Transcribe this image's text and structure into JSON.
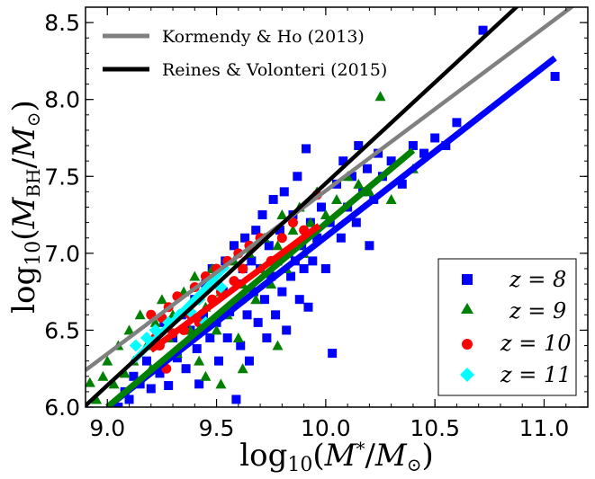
{
  "chart_data": {
    "type": "scatter",
    "xlabel": "log₁₀(M*/M⊙)",
    "ylabel": "log₁₀(M_BH/M⊙)",
    "xlim": [
      8.9,
      11.2
    ],
    "ylim": [
      6.0,
      8.6
    ],
    "xticks": [
      "9.0",
      "9.5",
      "10.0",
      "10.5",
      "11.0"
    ],
    "yticks": [
      "6.0",
      "6.5",
      "7.0",
      "7.5",
      "8.0",
      "8.5"
    ],
    "grid": false,
    "relations": [
      {
        "name": "Kormendy & Ho (2013)",
        "color": "#808080",
        "x": [
          8.9,
          11.2
        ],
        "y": [
          6.24,
          8.68
        ]
      },
      {
        "name": "Reines & Volonteri (2015)",
        "color": "#000000",
        "x": [
          8.9,
          11.2
        ],
        "y": [
          6.01,
          9.03
        ]
      }
    ],
    "series": [
      {
        "name": "z = 8",
        "marker": "square",
        "color": "#0000ff",
        "fit": {
          "x": [
            9.0,
            11.05
          ],
          "y": [
            6.0,
            8.27
          ]
        },
        "points": [
          [
            9.05,
            6.0
          ],
          [
            9.08,
            6.1
          ],
          [
            9.1,
            6.05
          ],
          [
            9.12,
            6.2
          ],
          [
            9.15,
            6.15
          ],
          [
            9.18,
            6.3
          ],
          [
            9.2,
            6.12
          ],
          [
            9.22,
            6.4
          ],
          [
            9.24,
            6.22
          ],
          [
            9.26,
            6.55
          ],
          [
            9.28,
            6.14
          ],
          [
            9.3,
            6.45
          ],
          [
            9.32,
            6.32
          ],
          [
            9.34,
            6.6
          ],
          [
            9.36,
            6.25
          ],
          [
            9.38,
            6.5
          ],
          [
            9.4,
            6.7
          ],
          [
            9.41,
            6.38
          ],
          [
            9.42,
            6.15
          ],
          [
            9.44,
            6.6
          ],
          [
            9.45,
            6.8
          ],
          [
            9.47,
            6.45
          ],
          [
            9.48,
            6.9
          ],
          [
            9.5,
            6.55
          ],
          [
            9.51,
            6.3
          ],
          [
            9.53,
            6.75
          ],
          [
            9.54,
            6.95
          ],
          [
            9.55,
            6.45
          ],
          [
            9.56,
            6.62
          ],
          [
            9.58,
            7.05
          ],
          [
            9.59,
            6.05
          ],
          [
            9.6,
            6.8
          ],
          [
            9.61,
            6.4
          ],
          [
            9.62,
            6.9
          ],
          [
            9.63,
            7.1
          ],
          [
            9.64,
            6.6
          ],
          [
            9.65,
            6.3
          ],
          [
            9.66,
            6.95
          ],
          [
            9.67,
            6.75
          ],
          [
            9.68,
            7.15
          ],
          [
            9.69,
            6.55
          ],
          [
            9.7,
            6.9
          ],
          [
            9.71,
            7.25
          ],
          [
            9.72,
            6.7
          ],
          [
            9.73,
            6.45
          ],
          [
            9.74,
            7.05
          ],
          [
            9.75,
            6.85
          ],
          [
            9.76,
            7.35
          ],
          [
            9.77,
            6.6
          ],
          [
            9.78,
            6.95
          ],
          [
            9.79,
            7.15
          ],
          [
            9.8,
            6.75
          ],
          [
            9.81,
            7.4
          ],
          [
            9.82,
            6.5
          ],
          [
            9.83,
            7.0
          ],
          [
            9.84,
            6.85
          ],
          [
            9.85,
            7.25
          ],
          [
            9.86,
            6.95
          ],
          [
            9.87,
            7.5
          ],
          [
            9.88,
            6.7
          ],
          [
            9.89,
            7.05
          ],
          [
            9.9,
            6.9
          ],
          [
            9.91,
            7.68
          ],
          [
            9.92,
            6.65
          ],
          [
            9.93,
            7.2
          ],
          [
            9.94,
            6.95
          ],
          [
            9.96,
            7.1
          ],
          [
            9.98,
            7.3
          ],
          [
            10.0,
            6.9
          ],
          [
            10.02,
            7.2
          ],
          [
            10.03,
            6.35
          ],
          [
            10.05,
            7.45
          ],
          [
            10.07,
            7.1
          ],
          [
            10.08,
            7.6
          ],
          [
            10.1,
            7.3
          ],
          [
            10.12,
            7.5
          ],
          [
            10.14,
            7.2
          ],
          [
            10.15,
            7.7
          ],
          [
            10.17,
            7.4
          ],
          [
            10.19,
            7.55
          ],
          [
            10.2,
            7.05
          ],
          [
            10.22,
            7.35
          ],
          [
            10.24,
            7.65
          ],
          [
            10.26,
            7.5
          ],
          [
            10.3,
            7.6
          ],
          [
            10.35,
            7.45
          ],
          [
            10.4,
            7.7
          ],
          [
            10.45,
            7.65
          ],
          [
            10.5,
            7.75
          ],
          [
            10.55,
            7.7
          ],
          [
            10.6,
            7.85
          ],
          [
            10.72,
            8.45
          ],
          [
            11.05,
            8.15
          ]
        ]
      },
      {
        "name": "z = 9",
        "marker": "triangle",
        "color": "#008000",
        "fit": {
          "x": [
            9.0,
            10.4
          ],
          "y": [
            6.0,
            7.67
          ]
        },
        "points": [
          [
            8.92,
            6.16
          ],
          [
            8.95,
            6.05
          ],
          [
            8.98,
            6.2
          ],
          [
            9.0,
            6.3
          ],
          [
            9.03,
            6.15
          ],
          [
            9.05,
            6.4
          ],
          [
            9.08,
            6.22
          ],
          [
            9.1,
            6.5
          ],
          [
            9.12,
            6.3
          ],
          [
            9.15,
            6.6
          ],
          [
            9.18,
            6.4
          ],
          [
            9.2,
            6.25
          ],
          [
            9.22,
            6.55
          ],
          [
            9.25,
            6.7
          ],
          [
            9.28,
            6.45
          ],
          [
            9.3,
            6.6
          ],
          [
            9.32,
            6.35
          ],
          [
            9.35,
            6.75
          ],
          [
            9.38,
            6.5
          ],
          [
            9.4,
            6.85
          ],
          [
            9.42,
            6.3
          ],
          [
            9.45,
            6.65
          ],
          [
            9.48,
            6.9
          ],
          [
            9.5,
            6.5
          ],
          [
            9.52,
            6.75
          ],
          [
            9.55,
            6.6
          ],
          [
            9.58,
            6.95
          ],
          [
            9.6,
            6.45
          ],
          [
            9.62,
            6.8
          ],
          [
            9.65,
            7.0
          ],
          [
            9.68,
            6.7
          ],
          [
            9.7,
            6.9
          ],
          [
            9.72,
            7.1
          ],
          [
            9.75,
            6.8
          ],
          [
            9.78,
            7.05
          ],
          [
            9.8,
            7.25
          ],
          [
            9.82,
            6.9
          ],
          [
            9.85,
            7.15
          ],
          [
            9.88,
            7.3
          ],
          [
            9.9,
            7.0
          ],
          [
            9.93,
            7.2
          ],
          [
            9.96,
            7.4
          ],
          [
            10.0,
            7.25
          ],
          [
            10.05,
            7.35
          ],
          [
            10.1,
            7.5
          ],
          [
            10.15,
            7.45
          ],
          [
            10.2,
            7.4
          ],
          [
            10.25,
            8.02
          ],
          [
            10.3,
            7.35
          ],
          [
            10.4,
            7.55
          ],
          [
            9.78,
            6.4
          ],
          [
            9.52,
            6.15
          ],
          [
            9.45,
            6.2
          ],
          [
            9.62,
            6.25
          ]
        ]
      },
      {
        "name": "z = 10",
        "marker": "circle",
        "color": "#ff0000",
        "fit": {
          "x": [
            9.2,
            9.97
          ],
          "y": [
            6.37,
            7.18
          ]
        },
        "points": [
          [
            9.2,
            6.6
          ],
          [
            9.22,
            6.45
          ],
          [
            9.24,
            6.4
          ],
          [
            9.25,
            6.58
          ],
          [
            9.27,
            6.25
          ],
          [
            9.28,
            6.65
          ],
          [
            9.3,
            6.48
          ],
          [
            9.32,
            6.72
          ],
          [
            9.35,
            6.5
          ],
          [
            9.38,
            6.6
          ],
          [
            9.4,
            6.78
          ],
          [
            9.42,
            6.55
          ],
          [
            9.45,
            6.85
          ],
          [
            9.48,
            6.7
          ],
          [
            9.5,
            6.9
          ],
          [
            9.52,
            6.75
          ],
          [
            9.55,
            6.95
          ],
          [
            9.58,
            6.82
          ],
          [
            9.6,
            7.0
          ],
          [
            9.62,
            6.9
          ],
          [
            9.65,
            7.05
          ],
          [
            9.7,
            7.1
          ],
          [
            9.75,
            6.95
          ],
          [
            9.8,
            7.1
          ],
          [
            9.85,
            7.2
          ],
          [
            9.9,
            7.15
          ],
          [
            9.96,
            7.38
          ]
        ]
      },
      {
        "name": "z = 11",
        "marker": "diamond",
        "color": "#00ffff",
        "fit": {
          "x": [
            9.12,
            9.55
          ],
          "y": [
            6.3,
            6.92
          ]
        },
        "points": [
          [
            9.13,
            6.4
          ],
          [
            9.18,
            6.45
          ],
          [
            9.22,
            6.5
          ],
          [
            9.28,
            6.55
          ],
          [
            9.33,
            6.6
          ],
          [
            9.38,
            6.62
          ],
          [
            9.42,
            6.7
          ],
          [
            9.45,
            6.55
          ],
          [
            9.5,
            6.8
          ],
          [
            9.52,
            6.78
          ]
        ]
      }
    ],
    "legend_top": "upper left",
    "legend_bottom": "lower right"
  }
}
